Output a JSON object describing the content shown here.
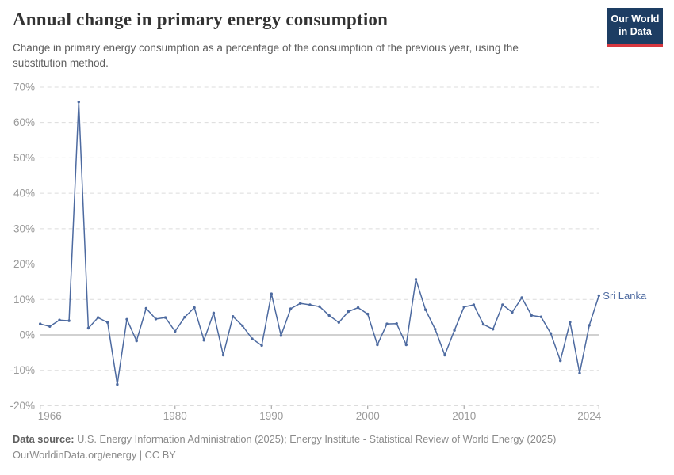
{
  "header": {
    "title": "Annual change in primary energy consumption",
    "subtitle": "Change in primary energy consumption as a percentage of the consumption of the previous year, using the substitution method.",
    "logo": {
      "line1": "Our World",
      "line2": "in Data"
    }
  },
  "chart_data": {
    "type": "line",
    "title": "Annual change in primary energy consumption",
    "entity": "Sri Lanka",
    "xlabel": "",
    "ylabel": "",
    "ylim": [
      -20,
      70
    ],
    "xlim": [
      1966,
      2024
    ],
    "grid": true,
    "legend_position": "end-of-line-label",
    "yticks": [
      {
        "v": 70,
        "label": "70%"
      },
      {
        "v": 60,
        "label": "60%"
      },
      {
        "v": 50,
        "label": "50%"
      },
      {
        "v": 40,
        "label": "40%"
      },
      {
        "v": 30,
        "label": "30%"
      },
      {
        "v": 20,
        "label": "20%"
      },
      {
        "v": 10,
        "label": "10%"
      },
      {
        "v": 0,
        "label": "0%"
      },
      {
        "v": -10,
        "label": "-10%"
      },
      {
        "v": -20,
        "label": "-20%"
      }
    ],
    "xticks": [
      {
        "v": 1966,
        "label": "1966"
      },
      {
        "v": 1980,
        "label": "1980"
      },
      {
        "v": 1990,
        "label": "1990"
      },
      {
        "v": 2000,
        "label": "2000"
      },
      {
        "v": 2010,
        "label": "2010"
      },
      {
        "v": 2024,
        "label": "2024"
      }
    ],
    "series": [
      {
        "name": "Sri Lanka",
        "color": "#4d6aa0",
        "x": [
          1966,
          1967,
          1968,
          1969,
          1970,
          1971,
          1972,
          1973,
          1974,
          1975,
          1976,
          1977,
          1978,
          1979,
          1980,
          1981,
          1982,
          1983,
          1984,
          1985,
          1986,
          1987,
          1988,
          1989,
          1990,
          1991,
          1992,
          1993,
          1994,
          1995,
          1996,
          1997,
          1998,
          1999,
          2000,
          2001,
          2002,
          2003,
          2004,
          2005,
          2006,
          2007,
          2008,
          2009,
          2010,
          2011,
          2012,
          2013,
          2014,
          2015,
          2016,
          2017,
          2018,
          2019,
          2020,
          2021,
          2022,
          2023,
          2024
        ],
        "values": [
          3.1,
          2.4,
          4.2,
          4.0,
          65.8,
          1.9,
          4.9,
          3.5,
          -14.0,
          4.4,
          -1.7,
          7.5,
          4.5,
          4.9,
          1.0,
          5.0,
          7.7,
          -1.5,
          6.2,
          -5.7,
          5.2,
          2.6,
          -1.1,
          -3.0,
          11.6,
          -0.2,
          7.4,
          8.9,
          8.5,
          8.0,
          5.5,
          3.5,
          6.6,
          7.7,
          5.9,
          -2.8,
          3.1,
          3.2,
          -2.8,
          15.7,
          7.1,
          1.6,
          -5.7,
          1.3,
          7.9,
          8.5,
          3.0,
          1.6,
          8.5,
          6.4,
          10.5,
          5.5,
          5.1,
          0.4,
          -7.3,
          3.6,
          -10.8,
          2.7,
          11.1
        ]
      }
    ]
  },
  "footer": {
    "source_label": "Data source:",
    "source_text": "U.S. Energy Information Administration (2025); Energy Institute - Statistical Review of World Energy (2025)",
    "citation": "OurWorldinData.org/energy | CC BY"
  },
  "colors": {
    "line": "#4d6aa0",
    "grid": "#dcdcdc",
    "zero_line": "#a3a3a3",
    "axis_text": "#9a9a9a",
    "logo_bg": "#1d3d63",
    "logo_accent": "#d7373f"
  }
}
